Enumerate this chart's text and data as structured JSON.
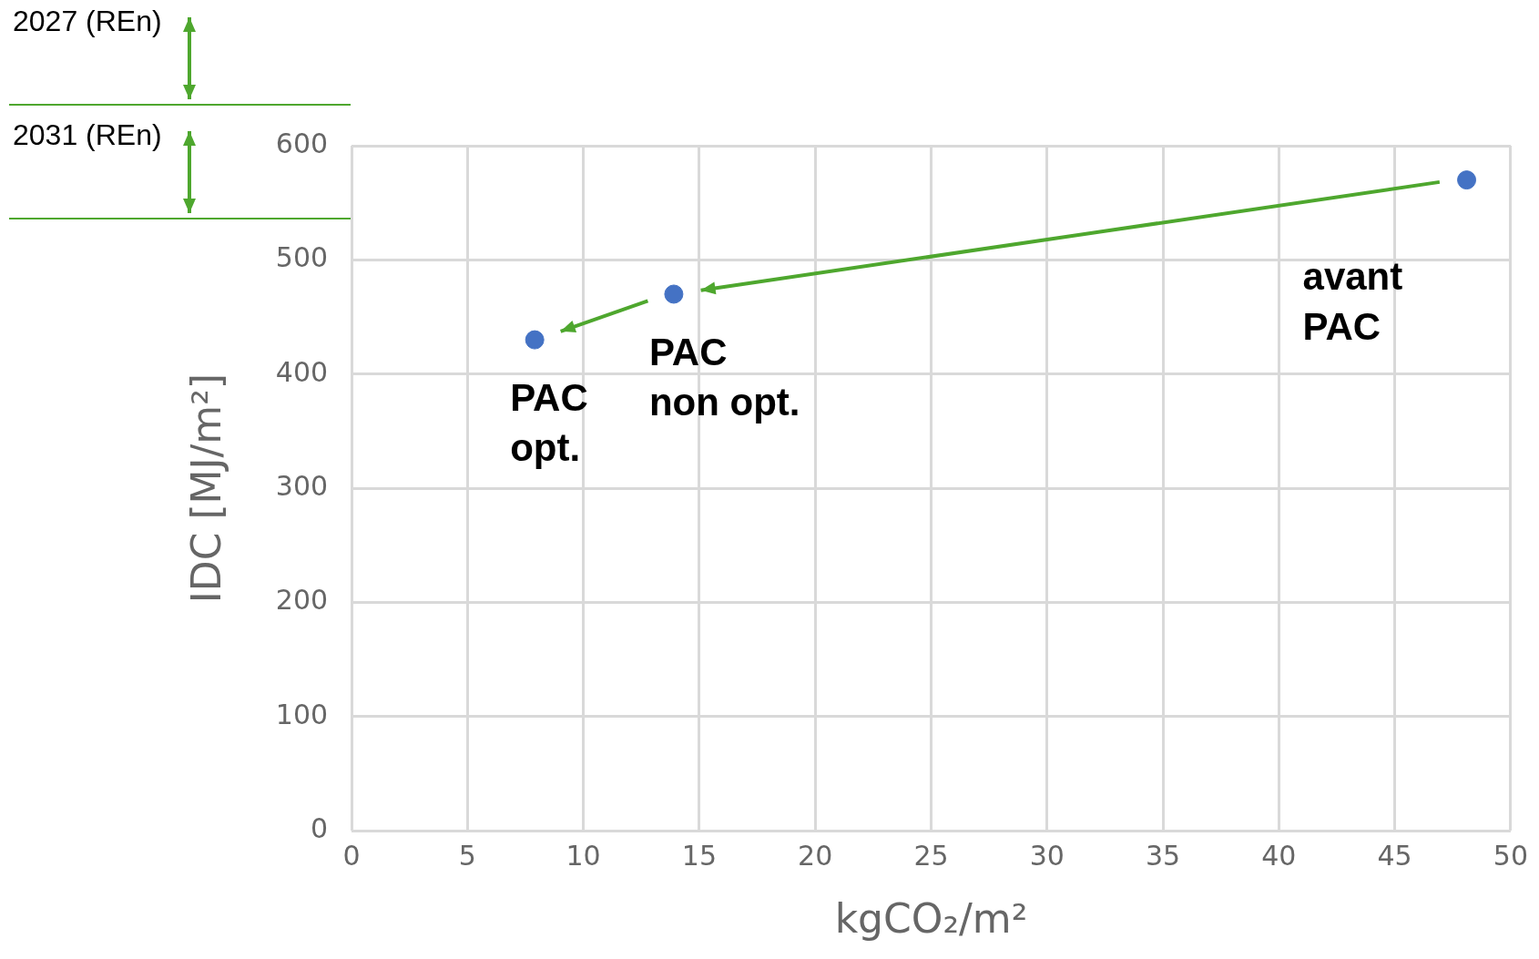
{
  "chart_data": {
    "type": "scatter",
    "xlabel": "kgCO₂/m²",
    "ylabel": "IDC [MJ/m²]",
    "x": [
      7.9,
      13.9,
      48.1
    ],
    "series": [
      {
        "color": "#4472c4",
        "values": [
          430,
          470,
          570
        ]
      }
    ],
    "xlim": [
      0,
      50
    ],
    "xticks": [
      0,
      5,
      10,
      15,
      20,
      25,
      30,
      35,
      40,
      45,
      50
    ],
    "ylim": [
      0,
      600
    ],
    "yticks": [
      0,
      100,
      200,
      300,
      400,
      500,
      600
    ],
    "grid": true,
    "legend": false,
    "marker": "circle",
    "annotations": [
      "2027 (REn)",
      "2031 (REn)",
      {
        "text": "PAC\nopt.",
        "x": 7.9,
        "y": 430
      },
      {
        "text": "PAC\nnon opt.",
        "x": 13.9,
        "y": 470
      },
      {
        "text": "avant\nPAC",
        "x": 48.1,
        "y": 570
      }
    ]
  }
}
